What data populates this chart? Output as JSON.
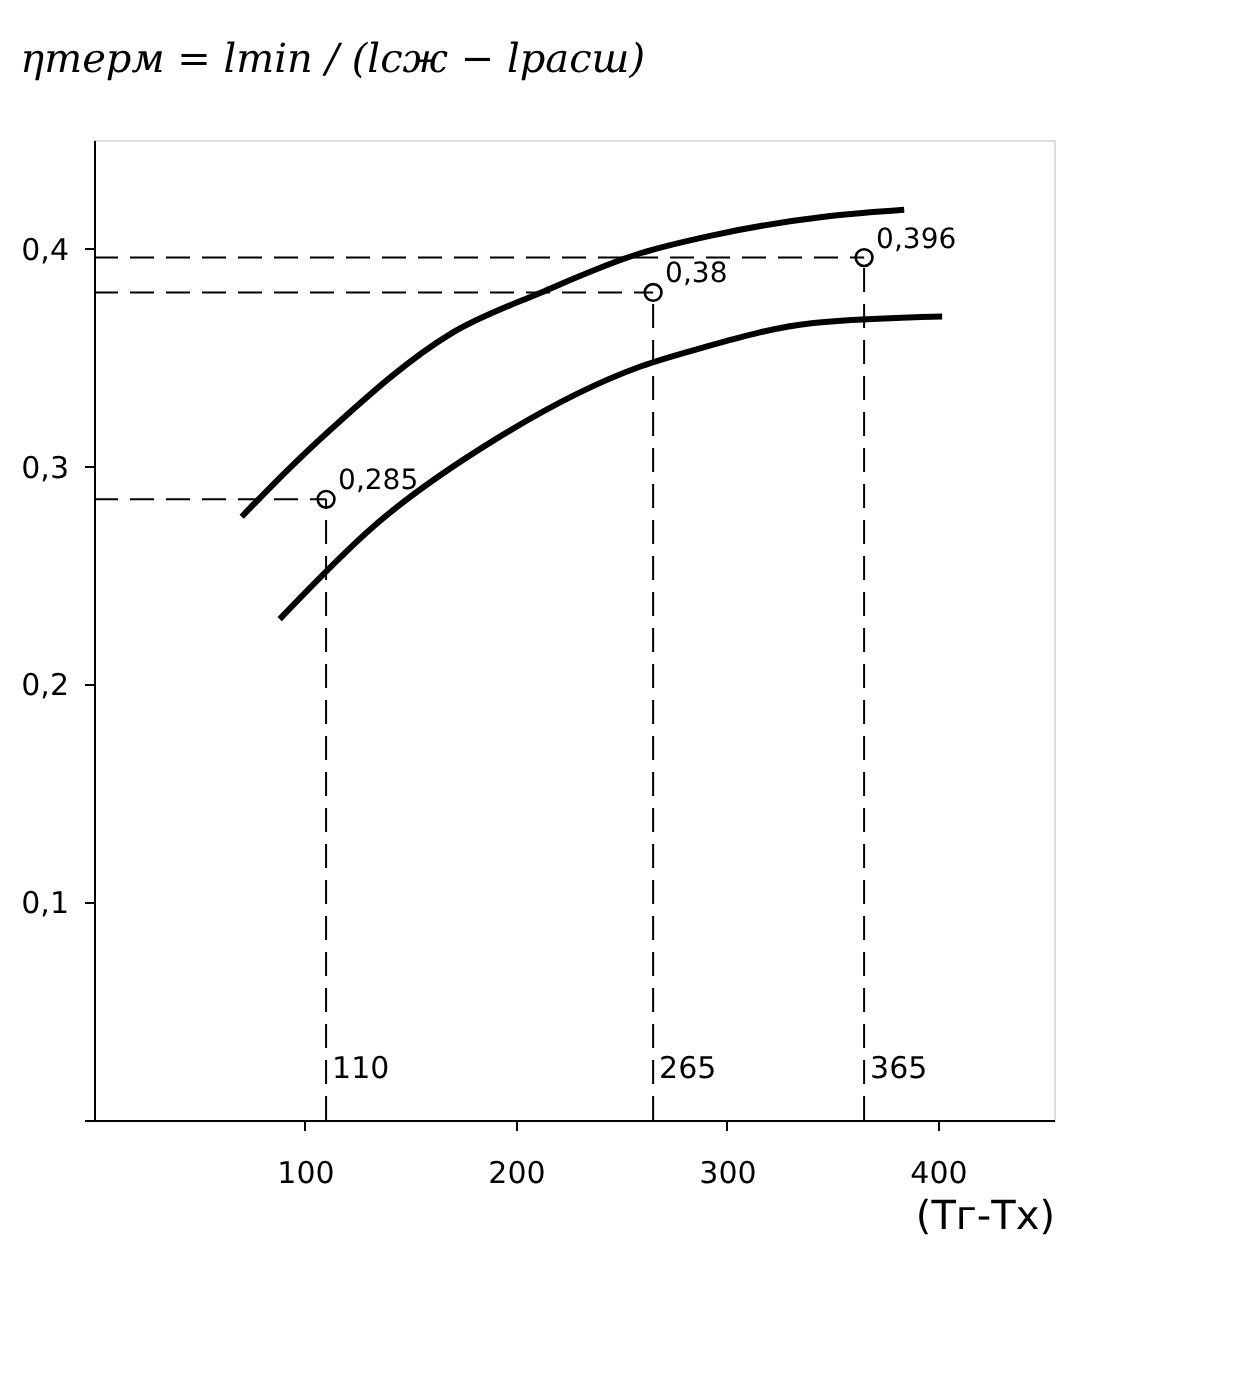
{
  "chart_data": {
    "type": "line",
    "title": "ηтерм = lmin / (lсж − lрасш)",
    "xlabel": "(Tг-Tx)",
    "xlim": [
      0,
      455
    ],
    "xticks": [
      100,
      200,
      300,
      400
    ],
    "ylim": [
      0,
      0.45
    ],
    "yticks": [
      {
        "value": 0,
        "label": null
      },
      {
        "value": 0.1,
        "label": "0,1"
      },
      {
        "value": 0.2,
        "label": "0,2"
      },
      {
        "value": 0.3,
        "label": "0,3"
      },
      {
        "value": 0.4,
        "label": "0,4"
      }
    ],
    "grid": false,
    "series": [
      {
        "color": "#000000",
        "x": [
          70,
          81,
          111,
          169,
          212,
          259,
          292,
          348,
          384
        ],
        "values": [
          0.277,
          0.288,
          0.316,
          0.361,
          0.38,
          0.398,
          0.406,
          0.415,
          0.418
        ]
      },
      {
        "color": "#000000",
        "x": [
          88,
          133,
          191,
          259,
          286,
          341,
          402
        ],
        "values": [
          0.23,
          0.273,
          0.313,
          0.346,
          0.354,
          0.366,
          0.369
        ]
      },
      {
        "type": "scatter",
        "marker": "circle",
        "color": "#000000",
        "x": [
          110,
          265,
          365
        ],
        "values": [
          0.285,
          0.38,
          0.396
        ],
        "value_labels": [
          "0,285",
          "0,38",
          "0,396"
        ]
      }
    ],
    "ref_lines": [
      {
        "axis": "x",
        "value": 110,
        "label": "110",
        "line_style": "dashed",
        "color": "#000000"
      },
      {
        "axis": "x",
        "value": 265,
        "label": "265",
        "line_style": "dashed",
        "color": "#000000"
      },
      {
        "axis": "x",
        "value": 365,
        "label": "365",
        "line_style": "dashed",
        "color": "#000000"
      },
      {
        "axis": "y",
        "value": 0.285,
        "line_style": "dashed",
        "color": "#000000"
      },
      {
        "axis": "y",
        "value": 0.38,
        "line_style": "dashed",
        "color": "#000000"
      },
      {
        "axis": "y",
        "value": 0.396,
        "line_style": "dashed",
        "color": "#000000"
      }
    ]
  }
}
